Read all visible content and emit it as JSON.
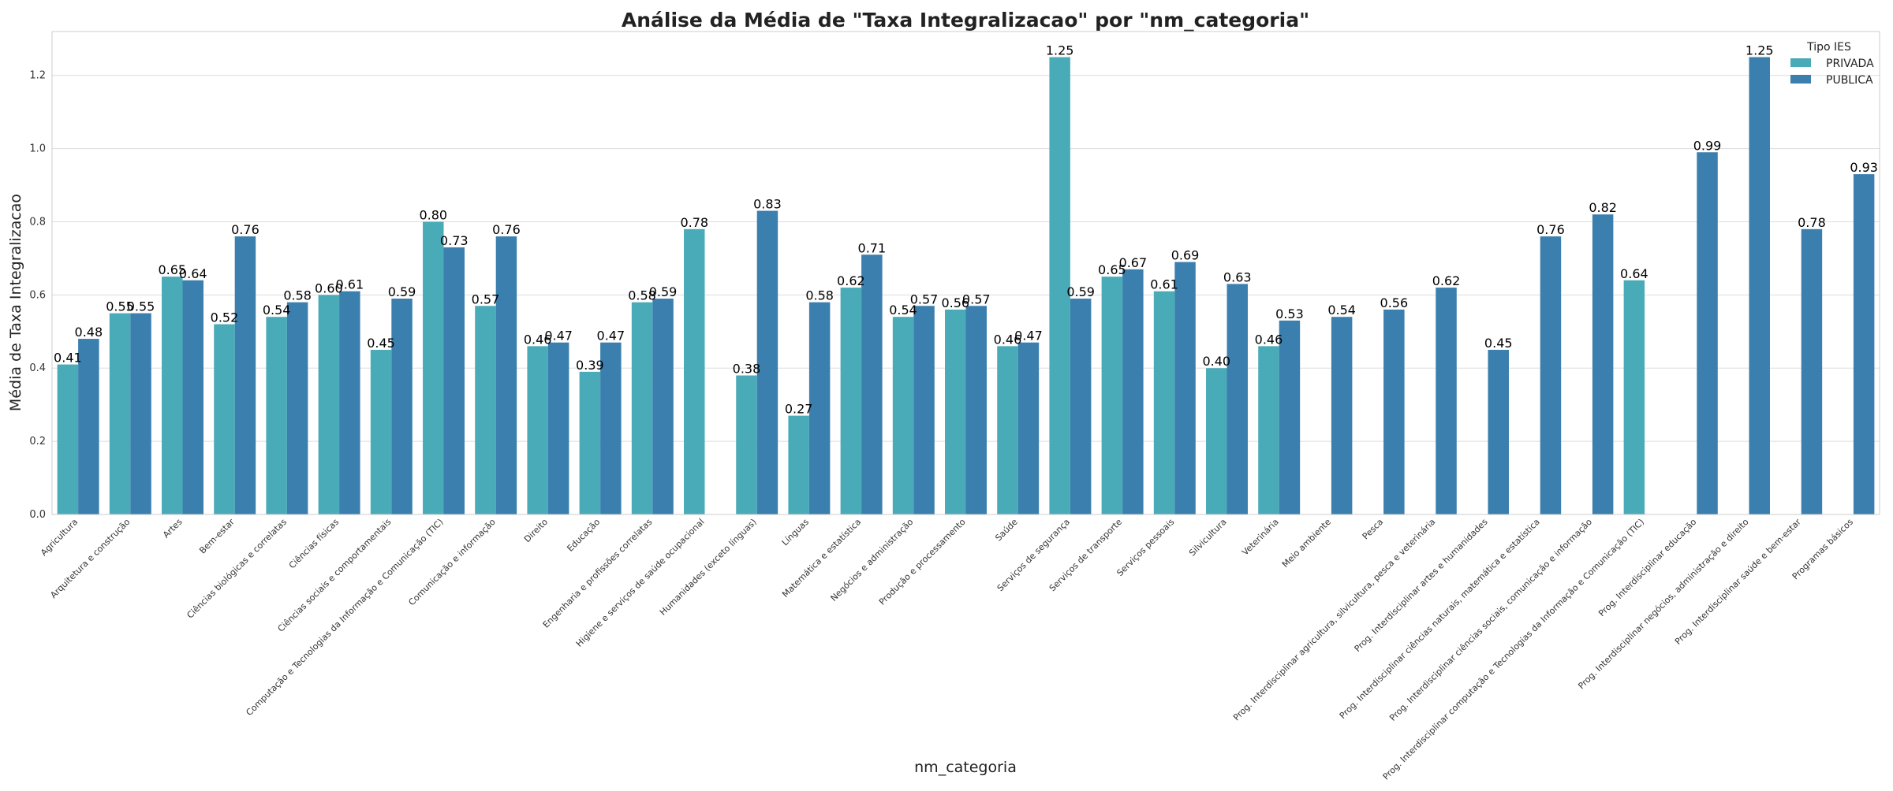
{
  "chart_data": {
    "type": "bar",
    "title": "Análise da Média de \"Taxa Integralizacao\" por \"nm_categoria\"",
    "xlabel": "nm_categoria",
    "ylabel": "Média de Taxa Integralizacao",
    "ylim": [
      0,
      1.32
    ],
    "yticks": [
      "0.0",
      "0.2",
      "0.4",
      "0.6",
      "0.8",
      "1.0",
      "1.2"
    ],
    "grid": true,
    "legend": {
      "title": "Tipo IES",
      "placement": "top-right"
    },
    "categories": [
      "Agricultura",
      "Arquitetura e construção",
      "Artes",
      "Bem-estar",
      "Ciências biológicas e correlatas",
      "Ciências físicas",
      "Ciências sociais e comportamentais",
      "Computação e Tecnologias da Informação e Comunicação (TIC)",
      "Comunicação e informação",
      "Direito",
      "Educação",
      "Engenharia e profissões correlatas",
      "Higiene e serviços de saúde ocupacional",
      "Humanidades (exceto línguas)",
      "Línguas",
      "Matemática e estatística",
      "Negócios e administração",
      "Produção e processamento",
      "Saúde",
      "Serviços de segurança",
      "Serviços de transporte",
      "Serviços pessoais",
      "Silvicultura",
      "Veterinária",
      "Meio ambiente",
      "Pesca",
      "Prog. Interdisciplinar agricultura, silvicultura, pesca e veterinária",
      "Prog. Interdisciplinar artes e humanidades",
      "Prog. Interdisciplinar ciências naturais, matemática e estatística",
      "Prog. Interdisciplinar ciências sociais, comunicação e informação",
      "Prog. Interdisciplinar computação e Tecnologias da Informação e Comunicação (TIC)",
      "Prog. Interdisciplinar educação",
      "Prog. Interdisciplinar negócios, administração e direito",
      "Prog. Interdisciplinar saúde e bem-estar",
      "Programas básicos"
    ],
    "series": [
      {
        "name": "PRIVADA",
        "color": "#4aabb8",
        "values": [
          0.41,
          0.55,
          0.65,
          0.52,
          0.54,
          0.6,
          0.45,
          0.8,
          0.57,
          0.46,
          0.39,
          0.58,
          0.78,
          0.38,
          0.27,
          0.62,
          0.54,
          0.56,
          0.46,
          1.25,
          0.65,
          0.61,
          0.4,
          0.46,
          null,
          null,
          null,
          null,
          null,
          null,
          0.64,
          null,
          null,
          null,
          null
        ],
        "labels": [
          "0.41",
          "0.55",
          "0.65",
          "0.52",
          "0.54",
          "0.60",
          "0.45",
          "0.80",
          "0.57",
          "0.46",
          "0.39",
          "0.58",
          "0.78",
          "0.38",
          "0.27",
          "0.62",
          "0.54",
          "0.56",
          "0.46",
          "1.25",
          "0.65",
          "0.61",
          "0.40",
          "0.46",
          null,
          null,
          null,
          null,
          null,
          null,
          "0.64",
          null,
          null,
          null,
          null
        ]
      },
      {
        "name": "PUBLICA",
        "color": "#3a7fae",
        "values": [
          0.48,
          0.55,
          0.64,
          0.76,
          0.58,
          0.61,
          0.59,
          0.73,
          0.76,
          0.47,
          0.47,
          0.59,
          null,
          0.83,
          0.58,
          0.71,
          0.57,
          0.57,
          0.47,
          0.59,
          0.67,
          0.69,
          0.63,
          0.53,
          0.54,
          0.56,
          0.62,
          0.45,
          0.76,
          0.82,
          null,
          0.99,
          1.25,
          0.78,
          0.93
        ],
        "labels": [
          "0.48",
          "0.55",
          "0.64",
          "0.76",
          "0.58",
          "0.61",
          "0.59",
          "0.73",
          "0.76",
          "0.47",
          "0.47",
          "0.59",
          null,
          "0.83",
          "0.58",
          "0.71",
          "0.57",
          "0.57",
          "0.47",
          "0.59",
          "0.67",
          "0.69",
          "0.63",
          "0.53",
          "0.54",
          "0.56",
          "0.62",
          "0.45",
          "0.76",
          "0.82",
          null,
          "0.99",
          "1.25",
          "0.78",
          "0.93"
        ]
      }
    ]
  }
}
